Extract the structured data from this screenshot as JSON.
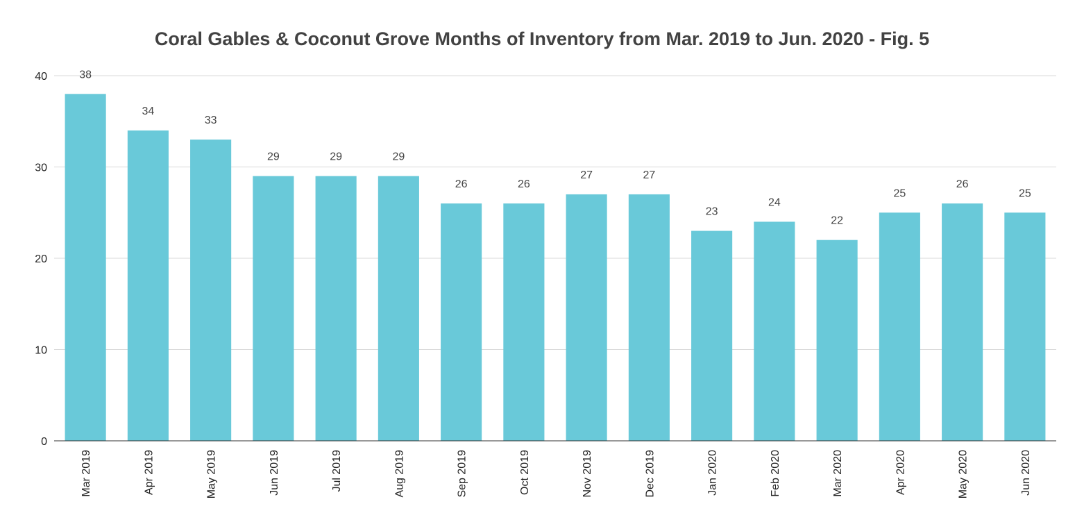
{
  "chart_data": {
    "type": "bar",
    "title": "Coral Gables & Coconut Grove Months of Inventory from Mar. 2019 to Jun. 2020 - Fig. 5",
    "xlabel": "",
    "ylabel": "",
    "categories": [
      "Mar 2019",
      "Apr 2019",
      "May 2019",
      "Jun 2019",
      "Jul 2019",
      "Aug 2019",
      "Sep 2019",
      "Oct 2019",
      "Nov 2019",
      "Dec 2019",
      "Jan 2020",
      "Feb 2020",
      "Mar 2020",
      "Apr 2020",
      "May 2020",
      "Jun 2020"
    ],
    "values": [
      38,
      34,
      33,
      29,
      29,
      29,
      26,
      26,
      27,
      27,
      23,
      24,
      22,
      25,
      26,
      25
    ],
    "ylim": [
      0,
      40
    ],
    "yticks": [
      0,
      10,
      20,
      30,
      40
    ],
    "grid": true,
    "legend": "none",
    "bar_color": "#69c9d9",
    "show_data_labels": true
  }
}
